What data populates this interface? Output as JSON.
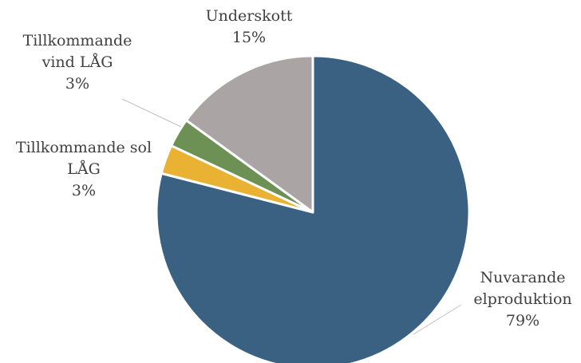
{
  "chart_data": {
    "type": "pie",
    "slices": [
      {
        "label_lines": [
          "Nuvarande",
          "elproduktion"
        ],
        "value": 79,
        "value_label": "79%",
        "color": "#3a6082"
      },
      {
        "label_lines": [
          "Tillkommande sol",
          "LÅG"
        ],
        "value": 3,
        "value_label": "3%",
        "color": "#eab232"
      },
      {
        "label_lines": [
          "Tillkommande",
          "vind LÅG"
        ],
        "value": 3,
        "value_label": "3%",
        "color": "#6d9055"
      },
      {
        "label_lines": [
          "Underskott"
        ],
        "value": 15,
        "value_label": "15%",
        "color": "#aaa5a4"
      }
    ]
  }
}
